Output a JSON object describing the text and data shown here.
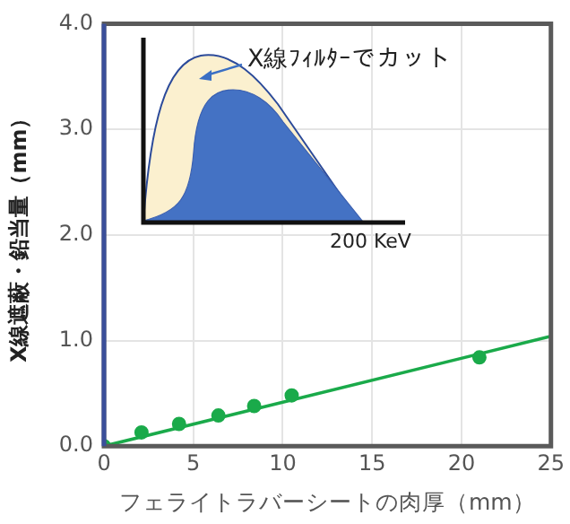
{
  "chart_data": {
    "type": "scatter",
    "xlabel": "フェライトラバーシートの肉厚（mm）",
    "ylabel": "X線遮蔽・鉛当量（mm）",
    "xlim": [
      0,
      25
    ],
    "xticks": [
      0,
      5,
      10,
      15,
      20,
      25
    ],
    "ylim": [
      0,
      4
    ],
    "yticks": [
      {
        "value": 0,
        "label": "0.0"
      },
      {
        "value": 1,
        "label": "1.0"
      },
      {
        "value": 2,
        "label": "2.0"
      },
      {
        "value": 3,
        "label": "3.0"
      },
      {
        "value": 4,
        "label": "4.0"
      }
    ],
    "grid": true,
    "legend": false,
    "annotations": [
      "X線ﾌｨﾙﾀｰでカット",
      "200 KeV"
    ],
    "series": [
      {
        "type": "scatter",
        "marker": "circle",
        "color": "#1aaa4a",
        "x": [
          0,
          2.1,
          4.2,
          6.4,
          8.4,
          10.5,
          21
        ],
        "values": [
          0,
          0.13,
          0.21,
          0.29,
          0.38,
          0.48,
          0.84
        ]
      },
      {
        "type": "line",
        "color": "#1aaa4a",
        "x": [
          0,
          25
        ],
        "values": [
          0,
          1.04
        ],
        "marker": "none",
        "line_style": "solid"
      }
    ]
  }
}
